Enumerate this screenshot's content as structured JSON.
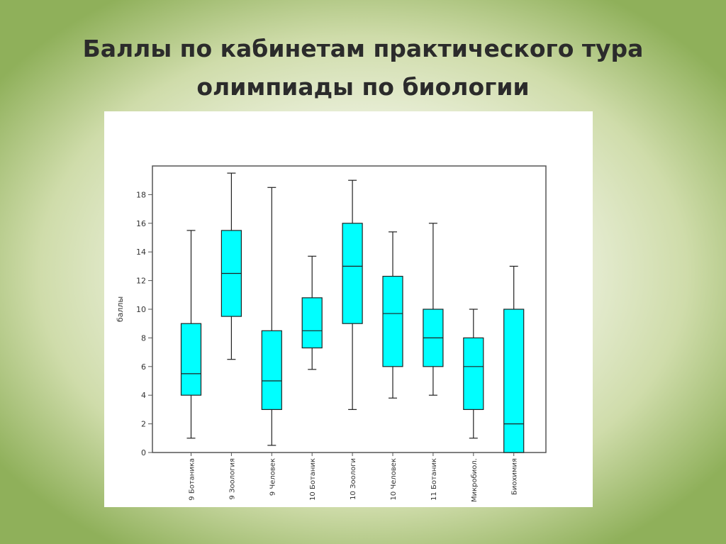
{
  "slide": {
    "title_line1": "Баллы по кабинетам практического тура",
    "title_line2": "олимпиады по биологии"
  },
  "chart_data": {
    "type": "boxplot",
    "title": "",
    "xlabel": "",
    "ylabel": "баллы",
    "ylim": [
      0,
      20
    ],
    "yticks": [
      0,
      2,
      4,
      6,
      8,
      10,
      12,
      14,
      16,
      18
    ],
    "grid": false,
    "box_color": "#00ffff",
    "line_color": "#222222",
    "categories": [
      "9 Ботаника",
      "9 Зоология",
      "9 Человек",
      "10 Ботаник",
      "10 Зоологи",
      "10 Человек",
      "11 Ботаник",
      "Микробиол.",
      "Биохимия"
    ],
    "boxes": [
      {
        "min": 1.0,
        "q1": 4.0,
        "median": 5.5,
        "q3": 9.0,
        "max": 15.5
      },
      {
        "min": 6.5,
        "q1": 9.5,
        "median": 12.5,
        "q3": 15.5,
        "max": 19.5
      },
      {
        "min": 0.5,
        "q1": 3.0,
        "median": 5.0,
        "q3": 8.5,
        "max": 18.5
      },
      {
        "min": 5.8,
        "q1": 7.3,
        "median": 8.5,
        "q3": 10.8,
        "max": 13.7
      },
      {
        "min": 3.0,
        "q1": 9.0,
        "median": 13.0,
        "q3": 16.0,
        "max": 19.0
      },
      {
        "min": 3.8,
        "q1": 6.0,
        "median": 9.7,
        "q3": 12.3,
        "max": 15.4
      },
      {
        "min": 4.0,
        "q1": 6.0,
        "median": 8.0,
        "q3": 10.0,
        "max": 16.0
      },
      {
        "min": 1.0,
        "q1": 3.0,
        "median": 6.0,
        "q3": 8.0,
        "max": 10.0
      },
      {
        "min": 0.0,
        "q1": 0.0,
        "median": 2.0,
        "q3": 10.0,
        "max": 13.0
      }
    ]
  }
}
